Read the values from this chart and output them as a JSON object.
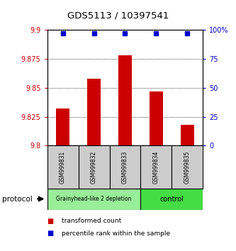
{
  "title": "GDS5113 / 10397541",
  "samples": [
    "GSM999831",
    "GSM999832",
    "GSM999833",
    "GSM999834",
    "GSM999835"
  ],
  "bar_values": [
    9.832,
    9.858,
    9.878,
    9.847,
    9.818
  ],
  "bar_base": 9.8,
  "percentile_values": [
    97,
    97,
    97,
    97,
    97
  ],
  "ylim_left": [
    9.8,
    9.9
  ],
  "ylim_right": [
    0,
    100
  ],
  "yticks_left": [
    9.8,
    9.825,
    9.85,
    9.875,
    9.9
  ],
  "yticks_right": [
    0,
    25,
    50,
    75,
    100
  ],
  "ytick_labels_left": [
    "9.8",
    "9.825",
    "9.85",
    "9.875",
    "9.9"
  ],
  "ytick_labels_right": [
    "0",
    "25",
    "50",
    "75",
    "100%"
  ],
  "bar_color": "#cc0000",
  "dot_color": "#0000cc",
  "group1_samples": [
    0,
    1,
    2
  ],
  "group2_samples": [
    3,
    4
  ],
  "group1_label": "Grainyhead-like 2 depletion",
  "group2_label": "control",
  "group1_color": "#99ee99",
  "group2_color": "#44dd44",
  "protocol_label": "protocol",
  "legend_bar_label": "transformed count",
  "legend_dot_label": "percentile rank within the sample",
  "tick_color_left": "#cc0000",
  "tick_color_right": "#0000cc",
  "background_color": "#ffffff",
  "sample_box_color": "#cccccc"
}
